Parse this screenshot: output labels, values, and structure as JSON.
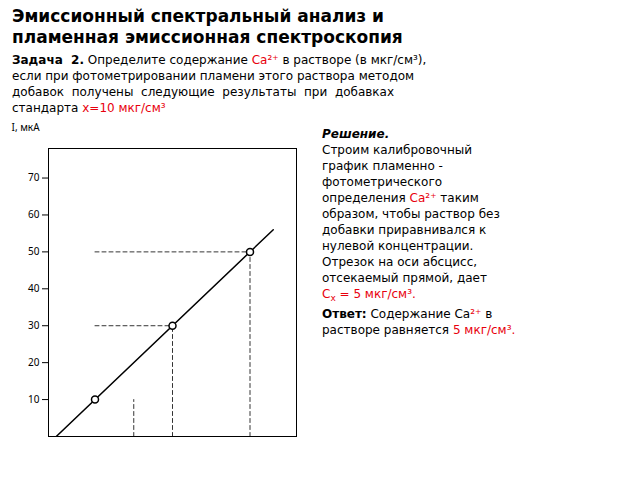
{
  "chart_data": {
    "type": "scatter",
    "title": [
      "Эмиссионный спектральный анализ и",
      "пламенная эмиссионная спектроскопия"
    ],
    "annotations": {
      "problem": [
        [
          {
            "text": "Задача  2.",
            "bold": true
          },
          {
            "text": " Определите содержание "
          },
          {
            "text": "Ca²⁺",
            "color": "#e8000d"
          },
          {
            "text": " в растворе (в мкг/см³),"
          }
        ],
        [
          {
            "text": "если при фотометрировании пламени этого раствора методом"
          }
        ],
        [
          {
            "text": "добавок  получены  следующие  результаты  при  добавках"
          }
        ],
        [
          {
            "text": "стандарта "
          },
          {
            "text": "x=10 мкг/см³",
            "color": "#e8000d"
          }
        ]
      ],
      "solution": [
        [
          {
            "text": "Решение.",
            "bold": true,
            "italic": true
          }
        ],
        [
          {
            "text": "Строим калибровочный"
          }
        ],
        [
          {
            "text": "график пламенно -"
          }
        ],
        [
          {
            "text": "фотометрического"
          }
        ],
        [
          {
            "text": "определения "
          },
          {
            "text": "Ca²⁺",
            "color": "#e8000d"
          },
          {
            "text": " таким"
          }
        ],
        [
          {
            "text": "образом, чтобы раствор без"
          }
        ],
        [
          {
            "text": "добавки приравнивался к"
          }
        ],
        [
          {
            "text": "нулевой концентрации."
          }
        ],
        [
          {
            "text": "Отрезок на оси абсцисс,"
          }
        ],
        [
          {
            "text": "отсекаемый прямой, дает"
          }
        ],
        [
          {
            "text": "C",
            "color": "#e8000d"
          },
          {
            "text": "x",
            "color": "#e8000d",
            "sub": true
          },
          {
            "text": " = 5 мкг/см³.",
            "color": "#e8000d"
          }
        ],
        [
          {
            "text": "Ответ:",
            "bold": true
          },
          {
            "text": " Содержание Ca"
          },
          {
            "text": "²⁺",
            "color": "#e8000d"
          },
          {
            "text": " в"
          }
        ],
        [
          {
            "text": "растворе равняется "
          },
          {
            "text": "5 мкг/см³.",
            "color": "#e8000d"
          }
        ]
      ]
    },
    "y_label": "I, мкА",
    "xlim": [
      -6,
      26
    ],
    "ylim": [
      0,
      78
    ],
    "yticks": [
      10,
      20,
      30,
      40,
      50,
      60,
      70
    ],
    "tick_labels": "y",
    "series": [
      {
        "type": "line",
        "line_style": "solid",
        "x": [
          -5,
          23
        ],
        "values": [
          0,
          56
        ]
      },
      {
        "type": "line",
        "line_style": "dashed",
        "x": [
          0,
          10
        ],
        "values": [
          30,
          30
        ]
      },
      {
        "type": "line",
        "line_style": "dashed",
        "x": [
          10,
          10
        ],
        "values": [
          0,
          30
        ]
      },
      {
        "type": "line",
        "line_style": "dashed",
        "x": [
          0,
          20
        ],
        "values": [
          50,
          50
        ]
      },
      {
        "type": "line",
        "line_style": "dashed",
        "x": [
          20,
          20
        ],
        "values": [
          0,
          50
        ]
      },
      {
        "type": "line",
        "line_style": "dashed",
        "x": [
          5,
          5
        ],
        "values": [
          0,
          10
        ]
      },
      {
        "type": "scatter",
        "marker": "o",
        "x": [
          0,
          10,
          20
        ],
        "values": [
          10,
          30,
          50
        ]
      }
    ]
  }
}
